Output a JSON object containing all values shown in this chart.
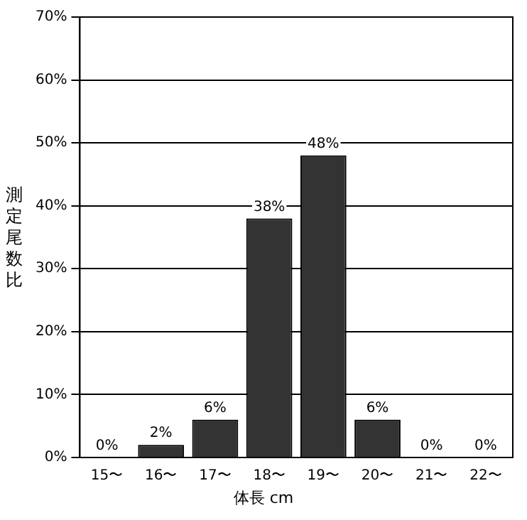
{
  "chart_data": {
    "type": "bar",
    "xlabel": "体長 cm",
    "ylabel": "測定尾数比",
    "categories": [
      "15〜",
      "16〜",
      "17〜",
      "18〜",
      "19〜",
      "20〜",
      "21〜",
      "22〜"
    ],
    "values": [
      0,
      2,
      6,
      38,
      48,
      6,
      0,
      0
    ],
    "color": "#333333",
    "value_labels": [
      "0%",
      "2%",
      "6%",
      "38%",
      "48%",
      "6%",
      "0%",
      "0%"
    ],
    "ylim": [
      0,
      70
    ],
    "yticks": [
      {
        "value": 0,
        "label": "0%"
      },
      {
        "value": 10,
        "label": "10%"
      },
      {
        "value": 20,
        "label": "20%"
      },
      {
        "value": 30,
        "label": "30%"
      },
      {
        "value": 40,
        "label": "40%"
      },
      {
        "value": 50,
        "label": "50%"
      },
      {
        "value": 60,
        "label": "60%"
      },
      {
        "value": 70,
        "label": "70%"
      }
    ],
    "grid": "y",
    "legend": false
  }
}
